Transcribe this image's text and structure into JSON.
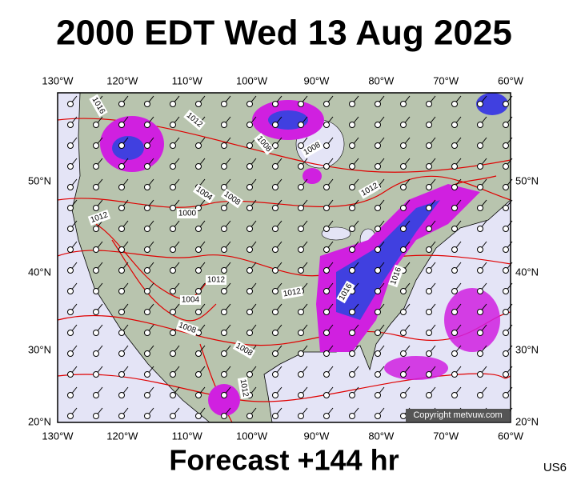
{
  "title": "2000 EDT Wed 13 Aug 2025",
  "footer": "Forecast +144 hr",
  "region_code": "US6",
  "copyright": "Copyright metvuw.com",
  "longitude_labels": [
    "130°W",
    "120°W",
    "110°W",
    "100°W",
    "90°W",
    "80°W",
    "70°W",
    "60°W"
  ],
  "latitude_labels": [
    "20°N",
    "30°N",
    "40°N",
    "50°N"
  ],
  "isobar_labels": [
    "1016",
    "1012",
    "1008",
    "1008",
    "1004",
    "1008",
    "1000",
    "1012",
    "1012",
    "1016",
    "1016",
    "1012",
    "1004",
    "1008",
    "1008",
    "1012",
    "1012"
  ]
}
